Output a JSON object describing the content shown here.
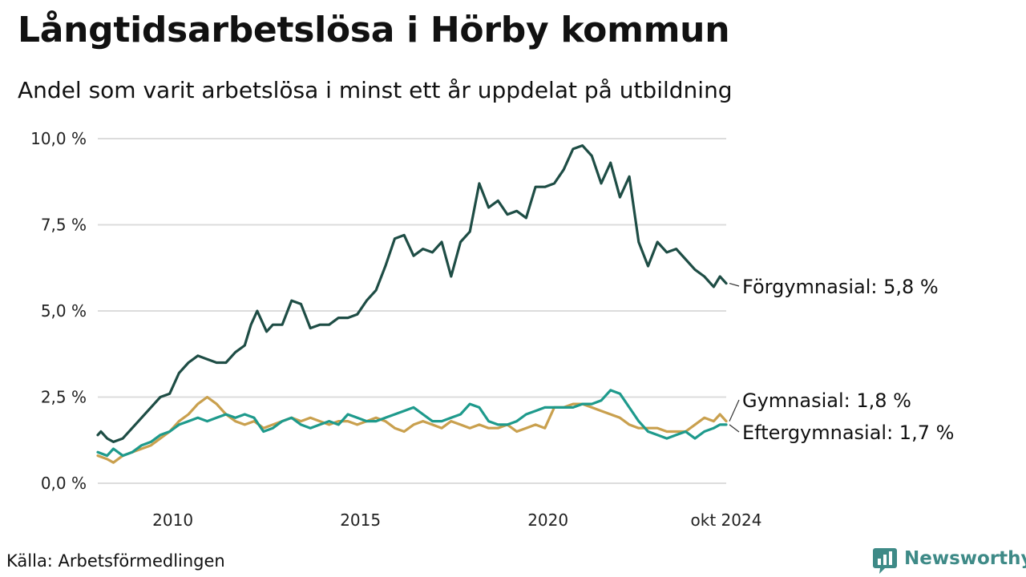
{
  "title": "Långtidsarbetslösa i Hörby kommun",
  "subtitle": "Andel som varit arbetslösa i minst ett år uppdelat på utbildning",
  "source": "Källa: Arbetsförmedlingen",
  "brand": {
    "name": "Newsworthy",
    "icon": "newsworthy-logo-icon",
    "color": "#3e8a87"
  },
  "chart_data": {
    "type": "line",
    "x_range": [
      "2008-01",
      "2024-10"
    ],
    "ylim": [
      0,
      10
    ],
    "yticks": [
      0,
      2.5,
      5,
      7.5,
      10
    ],
    "ytick_labels": [
      "0,0 %",
      "2,5 %",
      "5,0 %",
      "7,5 %",
      "10,0 %"
    ],
    "xticks": [
      {
        "x": "2010-01",
        "label": "2010"
      },
      {
        "x": "2015-01",
        "label": "2015"
      },
      {
        "x": "2020-01",
        "label": "2020"
      },
      {
        "x": "2024-10",
        "label": "okt 2024"
      }
    ],
    "grid": "horizontal",
    "legend": "direct-labels-right",
    "series": [
      {
        "name": "Förgymnasial",
        "end_label": "Förgymnasial: 5,8 %",
        "color": "#1e4d45",
        "points": [
          [
            "2008-01",
            1.4
          ],
          [
            "2008-02",
            1.5
          ],
          [
            "2008-04",
            1.3
          ],
          [
            "2008-06",
            1.2
          ],
          [
            "2008-09",
            1.3
          ],
          [
            "2008-12",
            1.6
          ],
          [
            "2009-03",
            1.9
          ],
          [
            "2009-06",
            2.2
          ],
          [
            "2009-09",
            2.5
          ],
          [
            "2009-12",
            2.6
          ],
          [
            "2010-03",
            3.2
          ],
          [
            "2010-06",
            3.5
          ],
          [
            "2010-09",
            3.7
          ],
          [
            "2010-12",
            3.6
          ],
          [
            "2011-03",
            3.5
          ],
          [
            "2011-06",
            3.5
          ],
          [
            "2011-09",
            3.8
          ],
          [
            "2011-12",
            4.0
          ],
          [
            "2012-02",
            4.6
          ],
          [
            "2012-04",
            5.0
          ],
          [
            "2012-07",
            4.4
          ],
          [
            "2012-09",
            4.6
          ],
          [
            "2012-12",
            4.6
          ],
          [
            "2013-03",
            5.3
          ],
          [
            "2013-06",
            5.2
          ],
          [
            "2013-09",
            4.5
          ],
          [
            "2013-12",
            4.6
          ],
          [
            "2014-03",
            4.6
          ],
          [
            "2014-06",
            4.8
          ],
          [
            "2014-09",
            4.8
          ],
          [
            "2014-12",
            4.9
          ],
          [
            "2015-03",
            5.3
          ],
          [
            "2015-06",
            5.6
          ],
          [
            "2015-09",
            6.3
          ],
          [
            "2015-12",
            7.1
          ],
          [
            "2016-03",
            7.2
          ],
          [
            "2016-06",
            6.6
          ],
          [
            "2016-09",
            6.8
          ],
          [
            "2016-12",
            6.7
          ],
          [
            "2017-03",
            7.0
          ],
          [
            "2017-06",
            6.0
          ],
          [
            "2017-09",
            7.0
          ],
          [
            "2017-12",
            7.3
          ],
          [
            "2018-03",
            8.7
          ],
          [
            "2018-06",
            8.0
          ],
          [
            "2018-09",
            8.2
          ],
          [
            "2018-12",
            7.8
          ],
          [
            "2019-03",
            7.9
          ],
          [
            "2019-06",
            7.7
          ],
          [
            "2019-09",
            8.6
          ],
          [
            "2019-12",
            8.6
          ],
          [
            "2020-03",
            8.7
          ],
          [
            "2020-06",
            9.1
          ],
          [
            "2020-09",
            9.7
          ],
          [
            "2020-12",
            9.8
          ],
          [
            "2021-03",
            9.5
          ],
          [
            "2021-06",
            8.7
          ],
          [
            "2021-09",
            9.3
          ],
          [
            "2021-12",
            8.3
          ],
          [
            "2022-03",
            8.9
          ],
          [
            "2022-06",
            7.0
          ],
          [
            "2022-09",
            6.3
          ],
          [
            "2022-12",
            7.0
          ],
          [
            "2023-03",
            6.7
          ],
          [
            "2023-06",
            6.8
          ],
          [
            "2023-09",
            6.5
          ],
          [
            "2023-12",
            6.2
          ],
          [
            "2024-03",
            6.0
          ],
          [
            "2024-06",
            5.7
          ],
          [
            "2024-08",
            6.0
          ],
          [
            "2024-09",
            5.9
          ],
          [
            "2024-10",
            5.8
          ]
        ]
      },
      {
        "name": "Gymnasial",
        "end_label": "Gymnasial: 1,8 %",
        "color": "#c9a04e",
        "points": [
          [
            "2008-01",
            0.8
          ],
          [
            "2008-04",
            0.7
          ],
          [
            "2008-06",
            0.6
          ],
          [
            "2008-09",
            0.8
          ],
          [
            "2008-12",
            0.9
          ],
          [
            "2009-03",
            1.0
          ],
          [
            "2009-06",
            1.1
          ],
          [
            "2009-09",
            1.3
          ],
          [
            "2009-12",
            1.5
          ],
          [
            "2010-03",
            1.8
          ],
          [
            "2010-06",
            2.0
          ],
          [
            "2010-09",
            2.3
          ],
          [
            "2010-12",
            2.5
          ],
          [
            "2011-03",
            2.3
          ],
          [
            "2011-06",
            2.0
          ],
          [
            "2011-09",
            1.8
          ],
          [
            "2011-12",
            1.7
          ],
          [
            "2012-03",
            1.8
          ],
          [
            "2012-06",
            1.6
          ],
          [
            "2012-09",
            1.7
          ],
          [
            "2012-12",
            1.8
          ],
          [
            "2013-03",
            1.9
          ],
          [
            "2013-06",
            1.8
          ],
          [
            "2013-09",
            1.9
          ],
          [
            "2013-12",
            1.8
          ],
          [
            "2014-03",
            1.7
          ],
          [
            "2014-06",
            1.8
          ],
          [
            "2014-09",
            1.8
          ],
          [
            "2014-12",
            1.7
          ],
          [
            "2015-03",
            1.8
          ],
          [
            "2015-06",
            1.9
          ],
          [
            "2015-09",
            1.8
          ],
          [
            "2015-12",
            1.6
          ],
          [
            "2016-03",
            1.5
          ],
          [
            "2016-06",
            1.7
          ],
          [
            "2016-09",
            1.8
          ],
          [
            "2016-12",
            1.7
          ],
          [
            "2017-03",
            1.6
          ],
          [
            "2017-06",
            1.8
          ],
          [
            "2017-09",
            1.7
          ],
          [
            "2017-12",
            1.6
          ],
          [
            "2018-03",
            1.7
          ],
          [
            "2018-06",
            1.6
          ],
          [
            "2018-09",
            1.6
          ],
          [
            "2018-12",
            1.7
          ],
          [
            "2019-03",
            1.5
          ],
          [
            "2019-06",
            1.6
          ],
          [
            "2019-09",
            1.7
          ],
          [
            "2019-12",
            1.6
          ],
          [
            "2020-03",
            2.2
          ],
          [
            "2020-06",
            2.2
          ],
          [
            "2020-09",
            2.3
          ],
          [
            "2020-12",
            2.3
          ],
          [
            "2021-03",
            2.2
          ],
          [
            "2021-06",
            2.1
          ],
          [
            "2021-09",
            2.0
          ],
          [
            "2021-12",
            1.9
          ],
          [
            "2022-03",
            1.7
          ],
          [
            "2022-06",
            1.6
          ],
          [
            "2022-09",
            1.6
          ],
          [
            "2022-12",
            1.6
          ],
          [
            "2023-03",
            1.5
          ],
          [
            "2023-06",
            1.5
          ],
          [
            "2023-09",
            1.5
          ],
          [
            "2023-12",
            1.7
          ],
          [
            "2024-03",
            1.9
          ],
          [
            "2024-06",
            1.8
          ],
          [
            "2024-08",
            2.0
          ],
          [
            "2024-10",
            1.8
          ]
        ]
      },
      {
        "name": "Eftergymnasial",
        "end_label": "Eftergymnasial: 1,7 %",
        "color": "#1e9a8c",
        "points": [
          [
            "2008-01",
            0.9
          ],
          [
            "2008-04",
            0.8
          ],
          [
            "2008-06",
            1.0
          ],
          [
            "2008-09",
            0.8
          ],
          [
            "2008-12",
            0.9
          ],
          [
            "2009-03",
            1.1
          ],
          [
            "2009-06",
            1.2
          ],
          [
            "2009-09",
            1.4
          ],
          [
            "2009-12",
            1.5
          ],
          [
            "2010-03",
            1.7
          ],
          [
            "2010-06",
            1.8
          ],
          [
            "2010-09",
            1.9
          ],
          [
            "2010-12",
            1.8
          ],
          [
            "2011-03",
            1.9
          ],
          [
            "2011-06",
            2.0
          ],
          [
            "2011-09",
            1.9
          ],
          [
            "2011-12",
            2.0
          ],
          [
            "2012-03",
            1.9
          ],
          [
            "2012-06",
            1.5
          ],
          [
            "2012-09",
            1.6
          ],
          [
            "2012-12",
            1.8
          ],
          [
            "2013-03",
            1.9
          ],
          [
            "2013-06",
            1.7
          ],
          [
            "2013-09",
            1.6
          ],
          [
            "2013-12",
            1.7
          ],
          [
            "2014-03",
            1.8
          ],
          [
            "2014-06",
            1.7
          ],
          [
            "2014-09",
            2.0
          ],
          [
            "2014-12",
            1.9
          ],
          [
            "2015-03",
            1.8
          ],
          [
            "2015-06",
            1.8
          ],
          [
            "2015-09",
            1.9
          ],
          [
            "2015-12",
            2.0
          ],
          [
            "2016-03",
            2.1
          ],
          [
            "2016-06",
            2.2
          ],
          [
            "2016-09",
            2.0
          ],
          [
            "2016-12",
            1.8
          ],
          [
            "2017-03",
            1.8
          ],
          [
            "2017-06",
            1.9
          ],
          [
            "2017-09",
            2.0
          ],
          [
            "2017-12",
            2.3
          ],
          [
            "2018-03",
            2.2
          ],
          [
            "2018-06",
            1.8
          ],
          [
            "2018-09",
            1.7
          ],
          [
            "2018-12",
            1.7
          ],
          [
            "2019-03",
            1.8
          ],
          [
            "2019-06",
            2.0
          ],
          [
            "2019-09",
            2.1
          ],
          [
            "2019-12",
            2.2
          ],
          [
            "2020-03",
            2.2
          ],
          [
            "2020-06",
            2.2
          ],
          [
            "2020-09",
            2.2
          ],
          [
            "2020-12",
            2.3
          ],
          [
            "2021-03",
            2.3
          ],
          [
            "2021-06",
            2.4
          ],
          [
            "2021-09",
            2.7
          ],
          [
            "2021-12",
            2.6
          ],
          [
            "2022-03",
            2.2
          ],
          [
            "2022-06",
            1.8
          ],
          [
            "2022-09",
            1.5
          ],
          [
            "2022-12",
            1.4
          ],
          [
            "2023-03",
            1.3
          ],
          [
            "2023-06",
            1.4
          ],
          [
            "2023-09",
            1.5
          ],
          [
            "2023-12",
            1.3
          ],
          [
            "2024-03",
            1.5
          ],
          [
            "2024-06",
            1.6
          ],
          [
            "2024-08",
            1.7
          ],
          [
            "2024-10",
            1.7
          ]
        ]
      }
    ]
  }
}
